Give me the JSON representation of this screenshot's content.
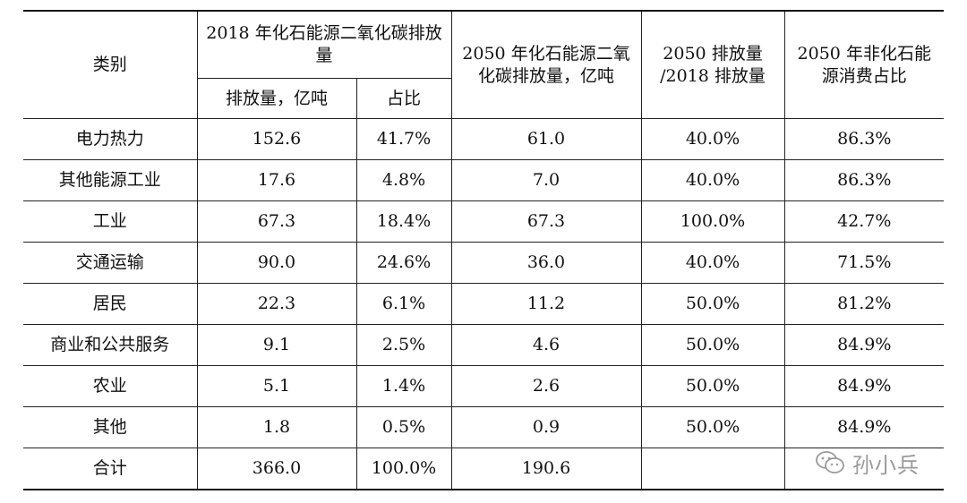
{
  "table": {
    "headers": {
      "category": "类别",
      "y2018_group": "2018 年化石能源二氧化碳排放量",
      "emission": "排放量，亿吨",
      "share": "占比",
      "y2050_emission": "2050 年化石能源二氧化碳排放量，亿吨",
      "ratio": "2050 排放量 /2018 排放量",
      "nonfossil": "2050 年非化石能源消费占比"
    },
    "rows": [
      {
        "category": "电力热力",
        "emission": "152.6",
        "share": "41.7%",
        "y2050": "61.0",
        "ratio": "40.0%",
        "nonfossil": "86.3%"
      },
      {
        "category": "其他能源工业",
        "emission": "17.6",
        "share": "4.8%",
        "y2050": "7.0",
        "ratio": "40.0%",
        "nonfossil": "86.3%"
      },
      {
        "category": "工业",
        "emission": "67.3",
        "share": "18.4%",
        "y2050": "67.3",
        "ratio": "100.0%",
        "nonfossil": "42.7%"
      },
      {
        "category": "交通运输",
        "emission": "90.0",
        "share": "24.6%",
        "y2050": "36.0",
        "ratio": "40.0%",
        "nonfossil": "71.5%"
      },
      {
        "category": "居民",
        "emission": "22.3",
        "share": "6.1%",
        "y2050": "11.2",
        "ratio": "50.0%",
        "nonfossil": "81.2%"
      },
      {
        "category": "商业和公共服务",
        "emission": "9.1",
        "share": "2.5%",
        "y2050": "4.6",
        "ratio": "50.0%",
        "nonfossil": "84.9%"
      },
      {
        "category": "农业",
        "emission": "5.1",
        "share": "1.4%",
        "y2050": "2.6",
        "ratio": "50.0%",
        "nonfossil": "84.9%"
      },
      {
        "category": "其他",
        "emission": "1.8",
        "share": "0.5%",
        "y2050": "0.9",
        "ratio": "50.0%",
        "nonfossil": "84.9%"
      },
      {
        "category": "合计",
        "emission": "366.0",
        "share": "100.0%",
        "y2050": "190.6",
        "ratio": "",
        "nonfossil": ""
      }
    ]
  },
  "watermark": {
    "text": "孙小兵",
    "icon": "wechat-icon"
  }
}
